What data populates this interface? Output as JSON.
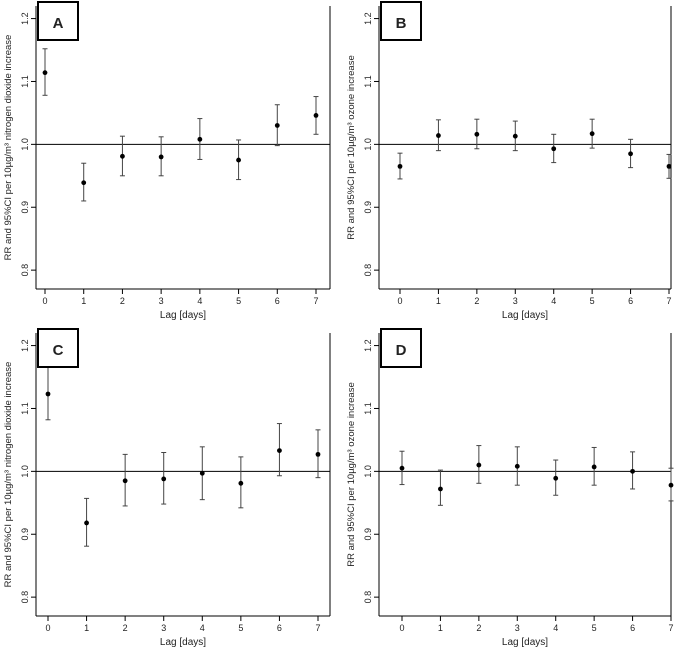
{
  "chart_data": [
    {
      "type": "scatter",
      "panel_label": "A",
      "xlabel": "Lag [days]",
      "ylabel": "RR and 95%CI per 10µg/m³ nitrogen dioxide increase",
      "x": [
        0,
        1,
        2,
        3,
        4,
        5,
        6,
        7
      ],
      "values": [
        1.114,
        0.939,
        0.981,
        0.98,
        1.008,
        0.975,
        1.03,
        1.046
      ],
      "ci_lower": [
        1.078,
        0.91,
        0.95,
        0.95,
        0.976,
        0.944,
        0.998,
        1.016
      ],
      "ci_upper": [
        1.152,
        0.97,
        1.013,
        1.012,
        1.041,
        1.007,
        1.063,
        1.076
      ],
      "x_ticks": [
        "0",
        "1",
        "2",
        "3",
        "4",
        "5",
        "6",
        "7"
      ],
      "y_ticks": [
        "0.8",
        "0.9",
        "1.0",
        "1.1",
        "1.2"
      ],
      "xlim": [
        -0.25,
        7.25
      ],
      "ylim": [
        0.77,
        1.22
      ],
      "reference_line": 1.0,
      "grid": false
    },
    {
      "type": "scatter",
      "panel_label": "B",
      "xlabel": "Lag [days]",
      "ylabel": "RR and 95%CI per 10µg/m³ ozone increase",
      "x": [
        0,
        1,
        2,
        3,
        4,
        5,
        6,
        7
      ],
      "values": [
        0.965,
        1.014,
        1.016,
        1.013,
        0.993,
        1.017,
        0.985,
        0.965
      ],
      "ci_lower": [
        0.945,
        0.99,
        0.993,
        0.99,
        0.971,
        0.994,
        0.963,
        0.946
      ],
      "ci_upper": [
        0.986,
        1.039,
        1.04,
        1.037,
        1.016,
        1.04,
        1.008,
        0.984
      ],
      "x_ticks": [
        "0",
        "1",
        "2",
        "3",
        "4",
        "5",
        "6",
        "7"
      ],
      "y_ticks": [
        "0.8",
        "0.9",
        "1.0",
        "1.1",
        "1.2"
      ],
      "xlim": [
        -0.25,
        7.25
      ],
      "ylim": [
        0.77,
        1.22
      ],
      "reference_line": 1.0,
      "grid": false
    },
    {
      "type": "scatter",
      "panel_label": "C",
      "xlabel": "Lag [days]",
      "ylabel": "RR and 95%CI per 10µg/m³ nitrogen dioxide increase",
      "x": [
        0,
        1,
        2,
        3,
        4,
        5,
        6,
        7
      ],
      "values": [
        1.123,
        0.918,
        0.985,
        0.988,
        0.997,
        0.981,
        1.033,
        1.027
      ],
      "ci_lower": [
        1.082,
        0.881,
        0.945,
        0.948,
        0.955,
        0.942,
        0.993,
        0.99
      ],
      "ci_upper": [
        1.168,
        0.957,
        1.027,
        1.03,
        1.039,
        1.023,
        1.076,
        1.066
      ],
      "x_ticks": [
        "0",
        "1",
        "2",
        "3",
        "4",
        "5",
        "6",
        "7"
      ],
      "y_ticks": [
        "0.8",
        "0.9",
        "1.0",
        "1.1",
        "1.2"
      ],
      "xlim": [
        -0.25,
        7.25
      ],
      "ylim": [
        0.77,
        1.22
      ],
      "reference_line": 1.0,
      "grid": false
    },
    {
      "type": "scatter",
      "panel_label": "D",
      "xlabel": "Lag [days]",
      "ylabel": "RR and 95%CI per 10µg/m³ ozone increase",
      "x": [
        0,
        1,
        2,
        3,
        4,
        5,
        6,
        7
      ],
      "values": [
        1.005,
        0.972,
        1.01,
        1.008,
        0.989,
        1.007,
        1.0,
        0.978
      ],
      "ci_lower": [
        0.979,
        0.946,
        0.981,
        0.978,
        0.962,
        0.978,
        0.972,
        0.953
      ],
      "ci_upper": [
        1.032,
        1.002,
        1.041,
        1.039,
        1.018,
        1.038,
        1.031,
        1.005
      ],
      "x_ticks": [
        "0",
        "1",
        "2",
        "3",
        "4",
        "5",
        "6",
        "7"
      ],
      "y_ticks": [
        "0.8",
        "0.9",
        "1.0",
        "1.1",
        "1.2"
      ],
      "xlim": [
        -0.25,
        7.25
      ],
      "ylim": [
        0.77,
        1.22
      ],
      "reference_line": 1.0,
      "grid": false
    }
  ]
}
